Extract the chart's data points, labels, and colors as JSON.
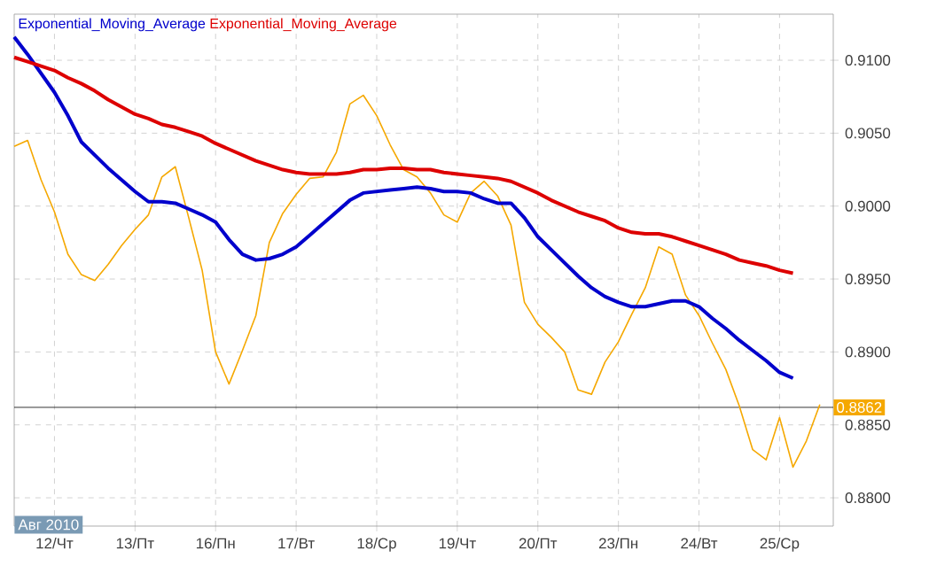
{
  "chart_data": {
    "type": "line",
    "categories": [
      null,
      null,
      null,
      "12/Чт",
      null,
      null,
      null,
      null,
      null,
      "13/Пт",
      null,
      null,
      null,
      null,
      null,
      "16/Пн",
      null,
      null,
      null,
      null,
      null,
      "17/Вт",
      null,
      null,
      null,
      null,
      null,
      "18/Ср",
      null,
      null,
      null,
      null,
      null,
      "19/Чт",
      null,
      null,
      null,
      null,
      null,
      "20/Пт",
      null,
      null,
      null,
      null,
      null,
      "23/Пн",
      null,
      null,
      null,
      null,
      null,
      "24/Вт",
      null,
      null,
      null,
      null,
      null,
      "25/Ср",
      null,
      null,
      null
    ],
    "ylim": [
      0.87806,
      0.91316
    ],
    "yticks": [
      {
        "value": 0.88,
        "label": "0.8800"
      },
      {
        "value": 0.885,
        "label": "0.8850"
      },
      {
        "value": 0.89,
        "label": "0.8900"
      },
      {
        "value": 0.895,
        "label": "0.8950"
      },
      {
        "value": 0.9,
        "label": "0.9000"
      },
      {
        "value": 0.905,
        "label": "0.9050"
      },
      {
        "value": 0.91,
        "label": "0.9100"
      }
    ],
    "grid": true,
    "legend": "top left",
    "series": [
      {
        "color": "#f5a800",
        "values": [
          0.9041,
          0.9045,
          0.9018,
          0.8996,
          0.8967,
          0.8953,
          0.8949,
          0.896,
          0.8973,
          0.8984,
          0.8994,
          0.902,
          0.9027,
          0.8992,
          0.8956,
          0.89,
          0.8878,
          0.8901,
          0.8925,
          0.8975,
          0.8995,
          0.9008,
          0.9019,
          0.902,
          0.9037,
          0.907,
          0.9076,
          0.9062,
          0.9042,
          0.9025,
          0.902,
          0.9009,
          0.8994,
          0.8989,
          0.9009,
          0.9017,
          0.9007,
          0.8987,
          0.8934,
          0.8919,
          0.891,
          0.89,
          0.8874,
          0.8871,
          0.8893,
          0.8907,
          0.8926,
          0.8944,
          0.8972,
          0.8967,
          0.8939,
          0.8925,
          0.8906,
          0.8888,
          0.8863,
          0.8833,
          0.8826,
          0.8855,
          0.8821,
          0.8839,
          0.8864
        ]
      },
      {
        "name": "Exponential_Moving_Average",
        "color": "#0000cc",
        "values": [
          0.9116,
          0.9104,
          0.9091,
          0.9078,
          0.9062,
          0.9044,
          0.9035,
          0.9026,
          0.9018,
          0.901,
          0.9003,
          0.9003,
          0.9002,
          0.8998,
          0.8994,
          0.8989,
          0.8977,
          0.8967,
          0.8963,
          0.8964,
          0.8967,
          0.8972,
          0.898,
          0.8988,
          0.8996,
          0.9004,
          0.9009,
          0.901,
          0.9011,
          0.9012,
          0.9013,
          0.9012,
          0.901,
          0.901,
          0.9009,
          0.9005,
          0.9002,
          0.9002,
          0.8992,
          0.8979,
          0.897,
          0.8961,
          0.8952,
          0.8944,
          0.8938,
          0.8934,
          0.8931,
          0.8931,
          0.8933,
          0.8935,
          0.8935,
          0.8931,
          0.8923,
          0.8916,
          0.8908,
          0.8901,
          0.8894,
          0.8886,
          0.8882,
          null,
          null
        ]
      },
      {
        "name": "Exponential_Moving_Average",
        "color": "#dd0000",
        "values": [
          0.9102,
          0.9099,
          0.9096,
          0.9093,
          0.9088,
          0.9084,
          0.9079,
          0.9073,
          0.9068,
          0.9063,
          0.906,
          0.9056,
          0.9054,
          0.9051,
          0.9048,
          0.9043,
          0.9039,
          0.9035,
          0.9031,
          0.9028,
          0.9025,
          0.9023,
          0.9022,
          0.9022,
          0.9022,
          0.9023,
          0.9025,
          0.9025,
          0.9026,
          0.9026,
          0.9025,
          0.9025,
          0.9023,
          0.9022,
          0.9021,
          0.902,
          0.9019,
          0.9017,
          0.9013,
          0.9009,
          0.9004,
          0.9,
          0.8996,
          0.8993,
          0.899,
          0.8985,
          0.8982,
          0.8981,
          0.8981,
          0.8979,
          0.8976,
          0.8973,
          0.897,
          0.8967,
          0.8963,
          0.8961,
          0.8959,
          0.8956,
          0.8954,
          null,
          null
        ]
      }
    ],
    "ref_lines": [
      {
        "axis": "y",
        "value": 0.8862,
        "label": "0.8862",
        "color": "#000000"
      }
    ],
    "annotations": [
      "Авг 2010"
    ]
  }
}
